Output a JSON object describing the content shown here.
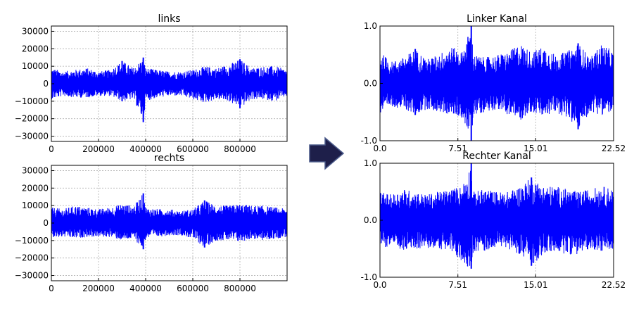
{
  "arrow": {
    "icon": "right-arrow-icon",
    "color": "#1e1f4a",
    "stroke": "#4a5a8a"
  },
  "chart_data": [
    {
      "type": "line",
      "title": "links",
      "xlabel": "",
      "ylabel": "",
      "xlim": [
        0,
        1000000
      ],
      "ylim": [
        -33000,
        33000
      ],
      "xticks": [
        0,
        200000,
        400000,
        600000,
        800000
      ],
      "xtick_labels": [
        "0",
        "200000",
        "400000",
        "600000",
        "800000"
      ],
      "yticks": [
        30000,
        20000,
        10000,
        0,
        -10000,
        -20000,
        -30000
      ],
      "ytick_labels": [
        "30000",
        "20000",
        "10000",
        "0",
        "−10000",
        "−20000",
        "−30000"
      ],
      "grid": true,
      "series": [
        {
          "color": "#0000ff",
          "envelope_x": [
            0,
            50000,
            100000,
            150000,
            200000,
            250000,
            300000,
            350000,
            390000,
            400000,
            450000,
            500000,
            550000,
            600000,
            650000,
            700000,
            750000,
            800000,
            850000,
            900000,
            950000,
            1000000
          ],
          "envelope_upper": [
            9000,
            7000,
            8000,
            9000,
            7000,
            8000,
            13000,
            9000,
            15000,
            9000,
            8000,
            7000,
            7000,
            8000,
            10000,
            9000,
            11000,
            14000,
            9000,
            10000,
            10000,
            8000
          ],
          "envelope_lower": [
            -9000,
            -7000,
            -8000,
            -8000,
            -7000,
            -7000,
            -10000,
            -9000,
            -22000,
            -10000,
            -8000,
            -7000,
            -7000,
            -9000,
            -11000,
            -9000,
            -10000,
            -14000,
            -9000,
            -9000,
            -10000,
            -7000
          ]
        }
      ]
    },
    {
      "type": "line",
      "title": "rechts",
      "xlabel": "",
      "ylabel": "",
      "xlim": [
        0,
        1000000
      ],
      "ylim": [
        -33000,
        33000
      ],
      "xticks": [
        0,
        200000,
        400000,
        600000,
        800000
      ],
      "xtick_labels": [
        "0",
        "200000",
        "400000",
        "600000",
        "800000"
      ],
      "yticks": [
        30000,
        20000,
        10000,
        0,
        -10000,
        -20000,
        -30000
      ],
      "ytick_labels": [
        "30000",
        "20000",
        "10000",
        "0",
        "−10000",
        "−20000",
        "−30000"
      ],
      "grid": true,
      "series": [
        {
          "color": "#0000ff",
          "envelope_x": [
            0,
            50000,
            100000,
            150000,
            200000,
            250000,
            300000,
            350000,
            390000,
            400000,
            450000,
            500000,
            550000,
            600000,
            650000,
            700000,
            750000,
            800000,
            850000,
            900000,
            950000,
            1000000
          ],
          "envelope_upper": [
            9000,
            8000,
            10000,
            9000,
            8000,
            9000,
            11000,
            10000,
            17000,
            9000,
            8000,
            8000,
            7000,
            8000,
            13000,
            10000,
            10000,
            11000,
            10000,
            10000,
            9000,
            8000
          ],
          "envelope_lower": [
            -9000,
            -8000,
            -9000,
            -8000,
            -8000,
            -8000,
            -10000,
            -9000,
            -15000,
            -9000,
            -8000,
            -7000,
            -7000,
            -9000,
            -14000,
            -10000,
            -10000,
            -11000,
            -9000,
            -10000,
            -9000,
            -8000
          ]
        }
      ]
    },
    {
      "type": "line",
      "title": "Linker Kanal",
      "xlabel": "",
      "ylabel": "",
      "xlim": [
        0,
        22.52
      ],
      "ylim": [
        -1.0,
        1.0
      ],
      "xticks": [
        0,
        7.51,
        15.01,
        22.52
      ],
      "xtick_labels": [
        "0.0",
        "7.51",
        "15.01",
        "22.52"
      ],
      "yticks": [
        1.0,
        0.0,
        -1.0
      ],
      "ytick_labels": [
        "1.0",
        "0.0",
        "-1.0"
      ],
      "grid": true,
      "series": [
        {
          "color": "#0000ff",
          "envelope_x": [
            0,
            1.1,
            2.3,
            3.4,
            4.5,
            5.6,
            6.8,
            7.9,
            8.8,
            9.0,
            10.1,
            11.3,
            12.4,
            13.5,
            14.6,
            15.8,
            16.9,
            18.0,
            19.1,
            20.3,
            21.4,
            22.52
          ],
          "envelope_upper": [
            0.55,
            0.38,
            0.45,
            0.6,
            0.42,
            0.5,
            0.65,
            0.55,
            1.0,
            0.5,
            0.45,
            0.5,
            0.55,
            0.7,
            0.55,
            0.65,
            0.5,
            0.55,
            0.7,
            0.45,
            0.7,
            0.55
          ],
          "envelope_lower": [
            -0.55,
            -0.4,
            -0.45,
            -0.55,
            -0.45,
            -0.5,
            -0.55,
            -0.6,
            -1.0,
            -0.55,
            -0.5,
            -0.45,
            -0.55,
            -0.65,
            -0.5,
            -0.6,
            -0.5,
            -0.6,
            -0.8,
            -0.5,
            -0.55,
            -0.5
          ]
        }
      ]
    },
    {
      "type": "line",
      "title": "Rechter Kanal",
      "xlabel": "",
      "ylabel": "",
      "xlim": [
        0,
        22.52
      ],
      "ylim": [
        -1.0,
        1.0
      ],
      "xticks": [
        0,
        7.51,
        15.01,
        22.52
      ],
      "xtick_labels": [
        "0.0",
        "7.51",
        "15.01",
        "22.52"
      ],
      "yticks": [
        1.0,
        0.0,
        -1.0
      ],
      "ytick_labels": [
        "1.0",
        "0.0",
        "-1.0"
      ],
      "grid": true,
      "series": [
        {
          "color": "#0000ff",
          "envelope_x": [
            0,
            1.1,
            2.3,
            3.4,
            4.5,
            5.6,
            6.8,
            7.9,
            8.8,
            9.0,
            10.1,
            11.3,
            12.4,
            13.5,
            14.6,
            15.8,
            16.9,
            18.0,
            19.1,
            20.3,
            21.4,
            22.52
          ],
          "envelope_upper": [
            0.5,
            0.45,
            0.55,
            0.5,
            0.45,
            0.5,
            0.55,
            0.6,
            1.0,
            0.5,
            0.55,
            0.5,
            0.5,
            0.6,
            0.75,
            0.6,
            0.6,
            0.55,
            0.5,
            0.55,
            0.6,
            0.55
          ],
          "envelope_lower": [
            -0.5,
            -0.45,
            -0.55,
            -0.5,
            -0.5,
            -0.5,
            -0.55,
            -0.75,
            -0.85,
            -0.55,
            -0.55,
            -0.45,
            -0.5,
            -0.6,
            -0.8,
            -0.6,
            -0.55,
            -0.6,
            -0.6,
            -0.5,
            -0.55,
            -0.5
          ]
        }
      ]
    }
  ]
}
